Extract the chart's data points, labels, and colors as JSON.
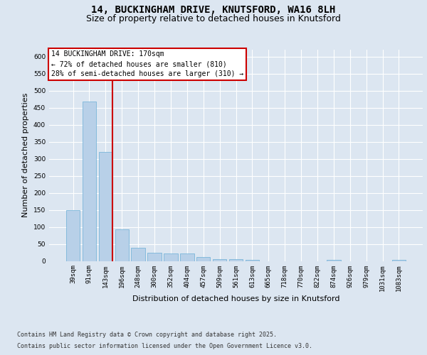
{
  "title_line1": "14, BUCKINGHAM DRIVE, KNUTSFORD, WA16 8LH",
  "title_line2": "Size of property relative to detached houses in Knutsford",
  "xlabel": "Distribution of detached houses by size in Knutsford",
  "ylabel": "Number of detached properties",
  "categories": [
    "39sqm",
    "91sqm",
    "143sqm",
    "196sqm",
    "248sqm",
    "300sqm",
    "352sqm",
    "404sqm",
    "457sqm",
    "509sqm",
    "561sqm",
    "613sqm",
    "665sqm",
    "718sqm",
    "770sqm",
    "822sqm",
    "874sqm",
    "926sqm",
    "979sqm",
    "1031sqm",
    "1083sqm"
  ],
  "values": [
    148,
    467,
    319,
    93,
    38,
    23,
    21,
    21,
    11,
    6,
    5,
    3,
    0,
    0,
    0,
    0,
    4,
    0,
    0,
    0,
    3
  ],
  "bar_color": "#b8d0e8",
  "bar_edge_color": "#6aaed6",
  "background_color": "#dce6f1",
  "grid_color": "#ffffff",
  "annotation_text": "14 BUCKINGHAM DRIVE: 170sqm\n← 72% of detached houses are smaller (810)\n28% of semi-detached houses are larger (310) →",
  "annotation_box_edge": "#cc0000",
  "vline_color": "#cc0000",
  "ylim": [
    0,
    620
  ],
  "yticks": [
    0,
    50,
    100,
    150,
    200,
    250,
    300,
    350,
    400,
    450,
    500,
    550,
    600
  ],
  "footer_line1": "Contains HM Land Registry data © Crown copyright and database right 2025.",
  "footer_line2": "Contains public sector information licensed under the Open Government Licence v3.0.",
  "title_fontsize": 10,
  "subtitle_fontsize": 9,
  "axis_label_fontsize": 8,
  "tick_fontsize": 6.5,
  "annotation_fontsize": 7,
  "footer_fontsize": 6
}
